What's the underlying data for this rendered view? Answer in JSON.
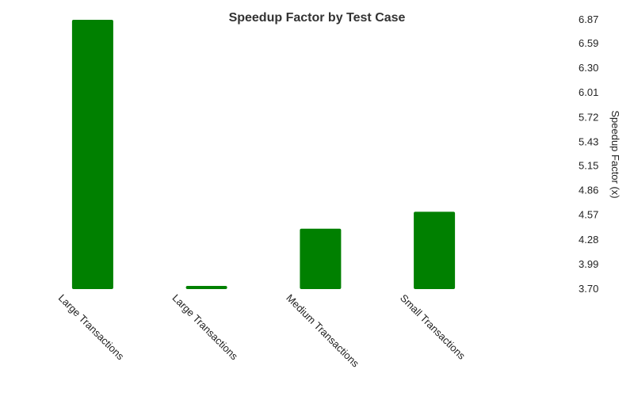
{
  "chart_data": {
    "type": "bar",
    "title": "Speedup Factor by Test Case",
    "categories": [
      "Large Transactions",
      "Large Transactions",
      "Medium Transactions",
      "Small Transactions"
    ],
    "values": [
      6.87,
      3.7,
      4.41,
      4.61
    ],
    "ylabel": "Speedup Factor (x)",
    "xlabel": "",
    "ylim": [
      3.7,
      6.87
    ],
    "yticks": [
      "3.70",
      "3.99",
      "4.28",
      "4.57",
      "4.86",
      "5.15",
      "5.43",
      "5.72",
      "6.01",
      "6.30",
      "6.59",
      "6.87"
    ],
    "y_axis_position": "right",
    "grid": false,
    "legend": "none",
    "bar_color": "#008000"
  }
}
